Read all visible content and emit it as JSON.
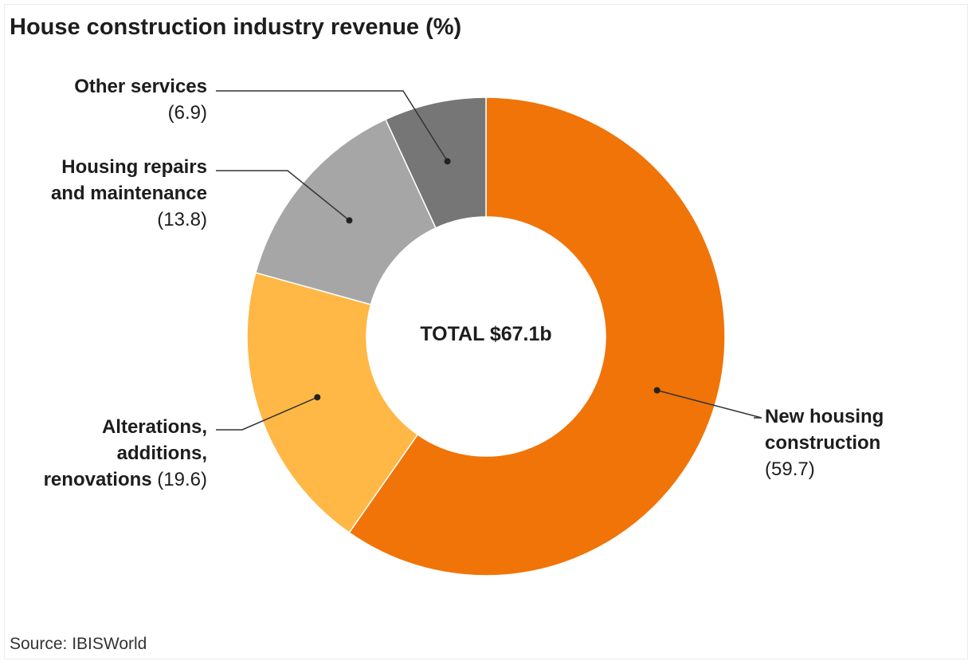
{
  "header": {
    "title": "House construction industry revenue (%)"
  },
  "chart_data": {
    "type": "pie",
    "variant": "donut",
    "title": "House construction industry revenue (%)",
    "center_label": "TOTAL $67.1b",
    "slices": [
      {
        "label": "New housing construction",
        "value": 59.7,
        "display": "(59.7)",
        "color": "#f07408"
      },
      {
        "label": "Alterations, additions, renovations",
        "value": 19.6,
        "display": "(19.6)",
        "color": "#ffb845"
      },
      {
        "label": "Housing repairs and maintenance",
        "value": 13.8,
        "display": "(13.8)",
        "color": "#a6a6a6"
      },
      {
        "label": "Other services",
        "value": 6.9,
        "display": "(6.9)",
        "color": "#767676"
      }
    ],
    "legend": "none (direct labels with leader lines)"
  },
  "labels": {
    "new_housing": {
      "line1": "New housing",
      "line2": "construction",
      "value": "(59.7)"
    },
    "alterations": {
      "line1": "Alterations,",
      "line2": "additions,",
      "line3": "renovations",
      "value": "(19.6)"
    },
    "repairs": {
      "line1": "Housing repairs",
      "line2": "and maintenance",
      "value": "(13.8)"
    },
    "other": {
      "line1": "Other services",
      "value": "(6.9)"
    }
  },
  "footer": {
    "source": "Source: IBISWorld"
  }
}
